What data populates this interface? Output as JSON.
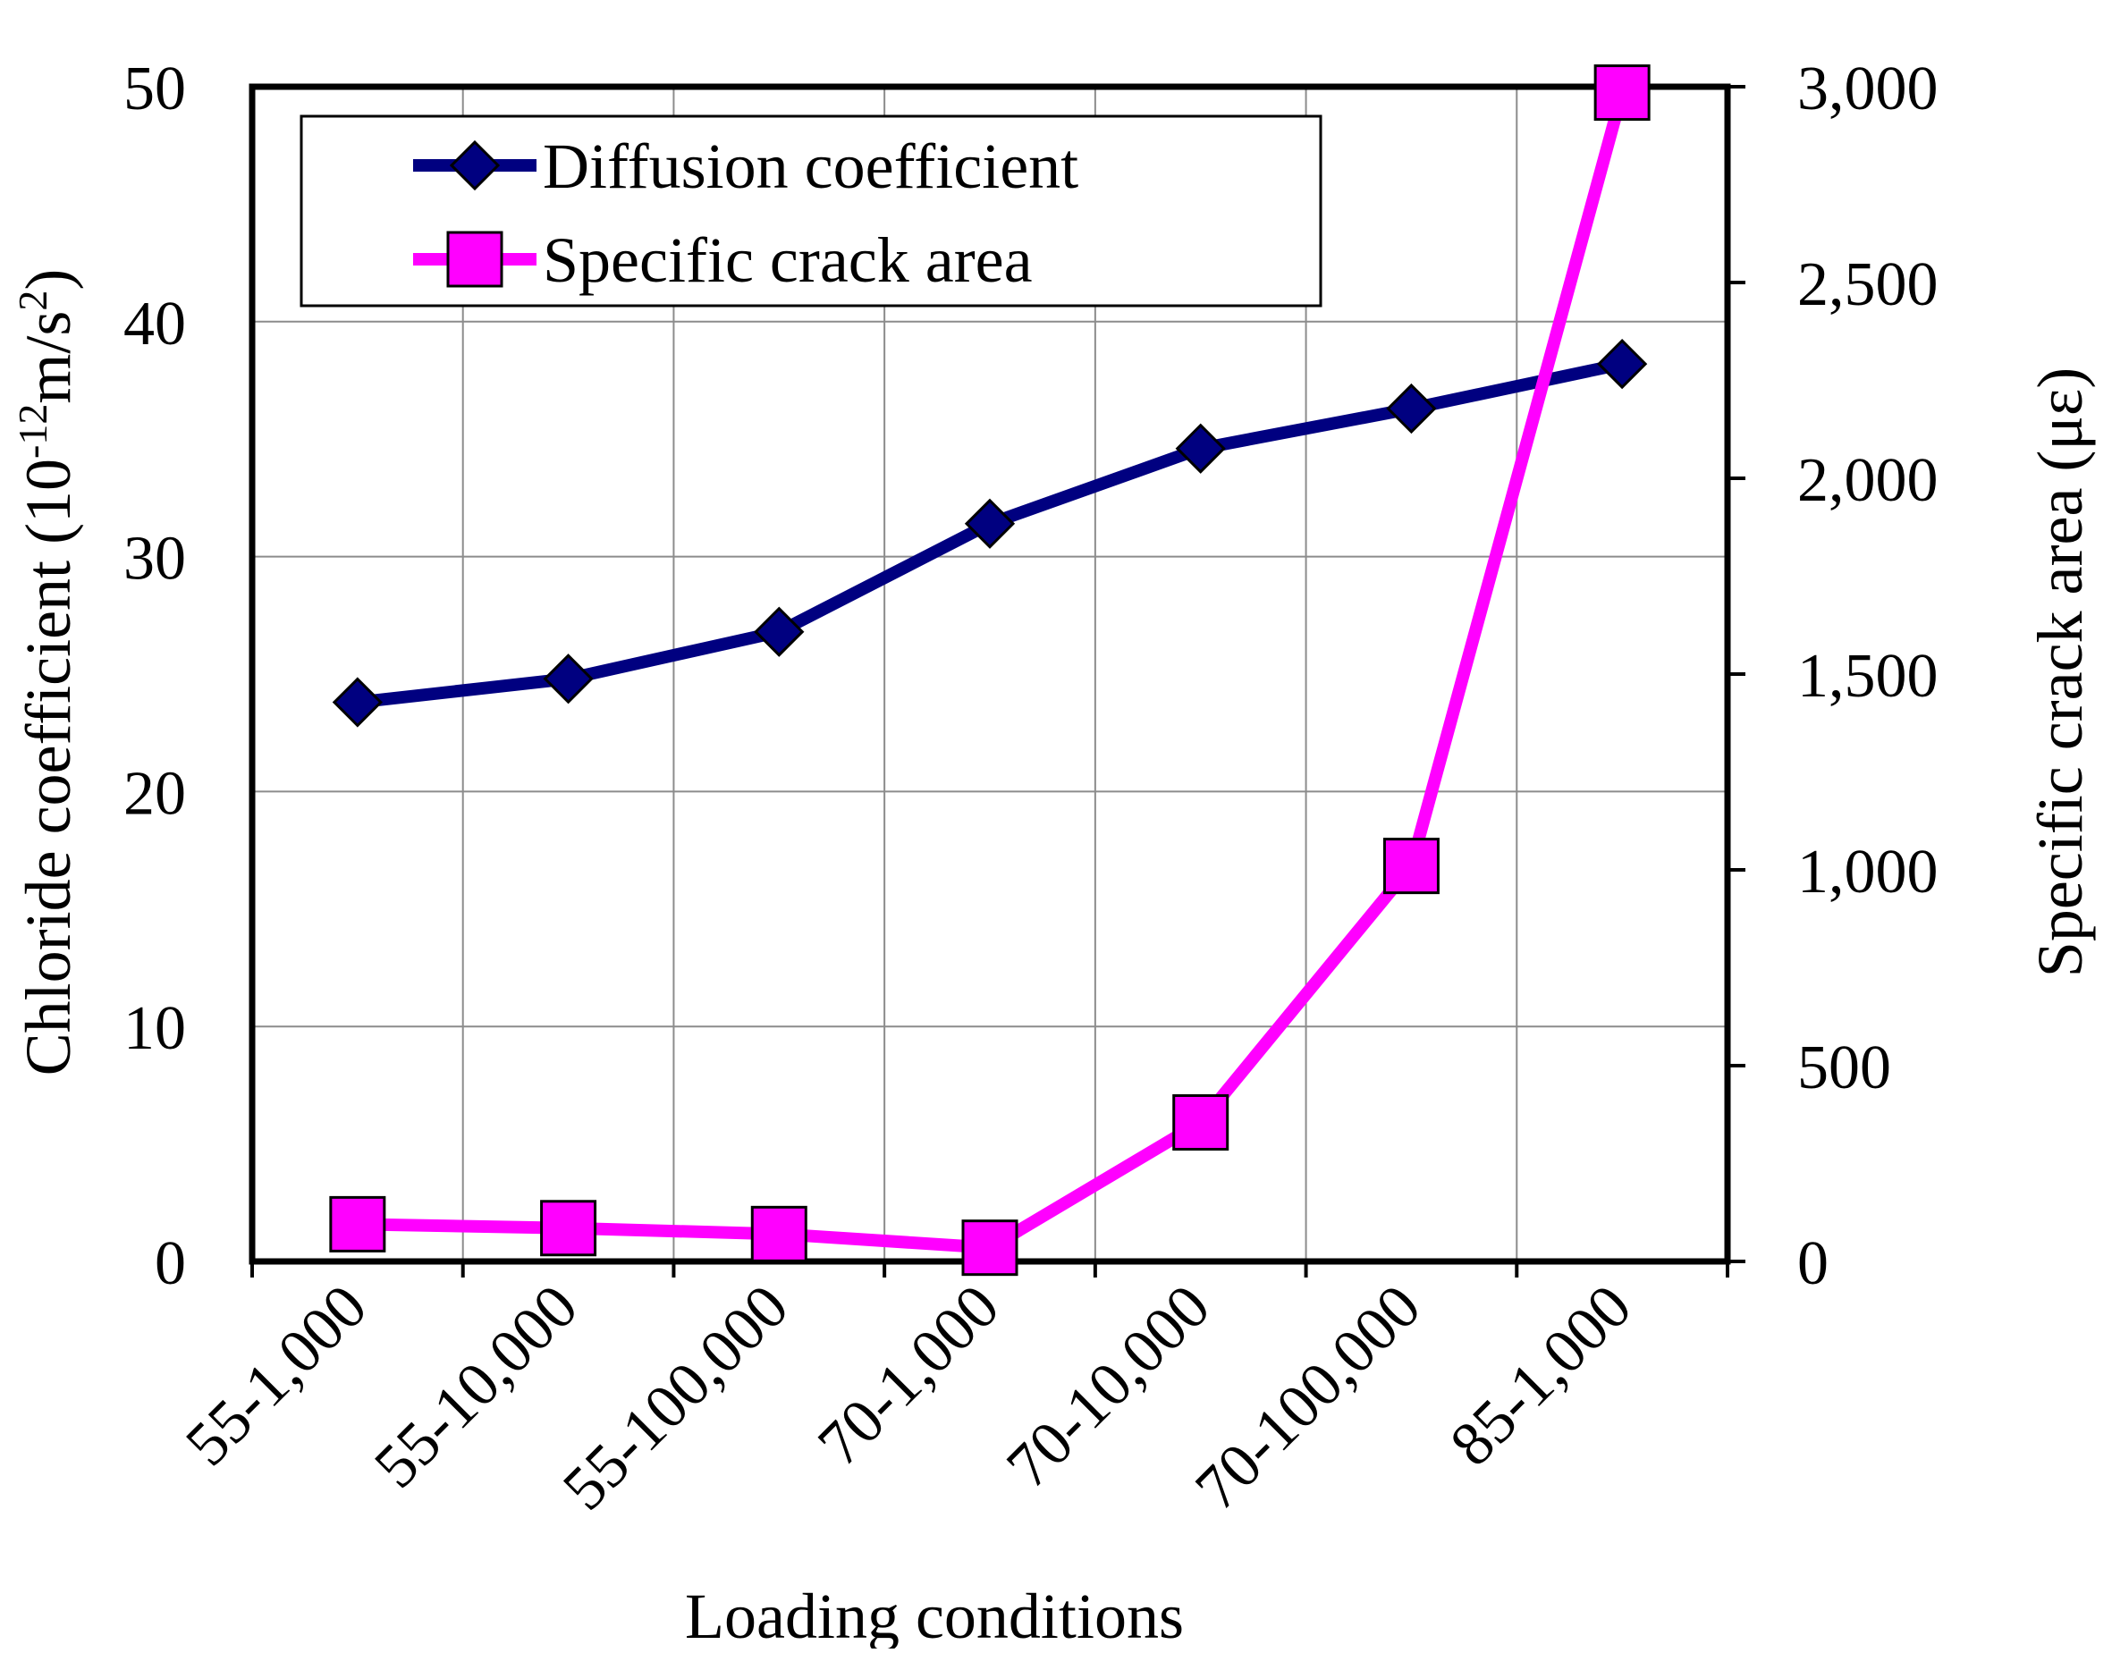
{
  "chart_data": {
    "type": "line",
    "categories": [
      "55-1,000",
      "55-10,000",
      "55-100,000",
      "70-1,000",
      "70-10,000",
      "70-100,000",
      "85-1,000"
    ],
    "series": [
      {
        "name": "Diffusion coefficient",
        "axis": "left",
        "marker": "diamond",
        "color": "#000080",
        "values": [
          23.8,
          24.8,
          26.8,
          31.4,
          34.6,
          36.3,
          38.2
        ]
      },
      {
        "name": "Specific crack area",
        "axis": "right",
        "marker": "square",
        "color": "#ff00ff",
        "values": [
          95,
          85,
          70,
          35,
          355,
          1010,
          2985
        ]
      }
    ],
    "xlabel": "Loading conditions",
    "ylabel_left": {
      "prefix": "Chloride coefficient (10",
      "exp1": "-12",
      "mid": "m/s",
      "exp2": "2",
      "suffix": ")"
    },
    "ylabel_right": "Specific crack area (με)",
    "ylim_left": [
      0,
      50
    ],
    "ylim_right": [
      0,
      3000
    ],
    "yticks_left": [
      "0",
      "10",
      "20",
      "30",
      "40",
      "50"
    ],
    "yticks_right": [
      "0",
      "500",
      "1,000",
      "1,500",
      "2,000",
      "2,500",
      "3,000"
    ],
    "grid": true,
    "legend_position": "top-left"
  }
}
